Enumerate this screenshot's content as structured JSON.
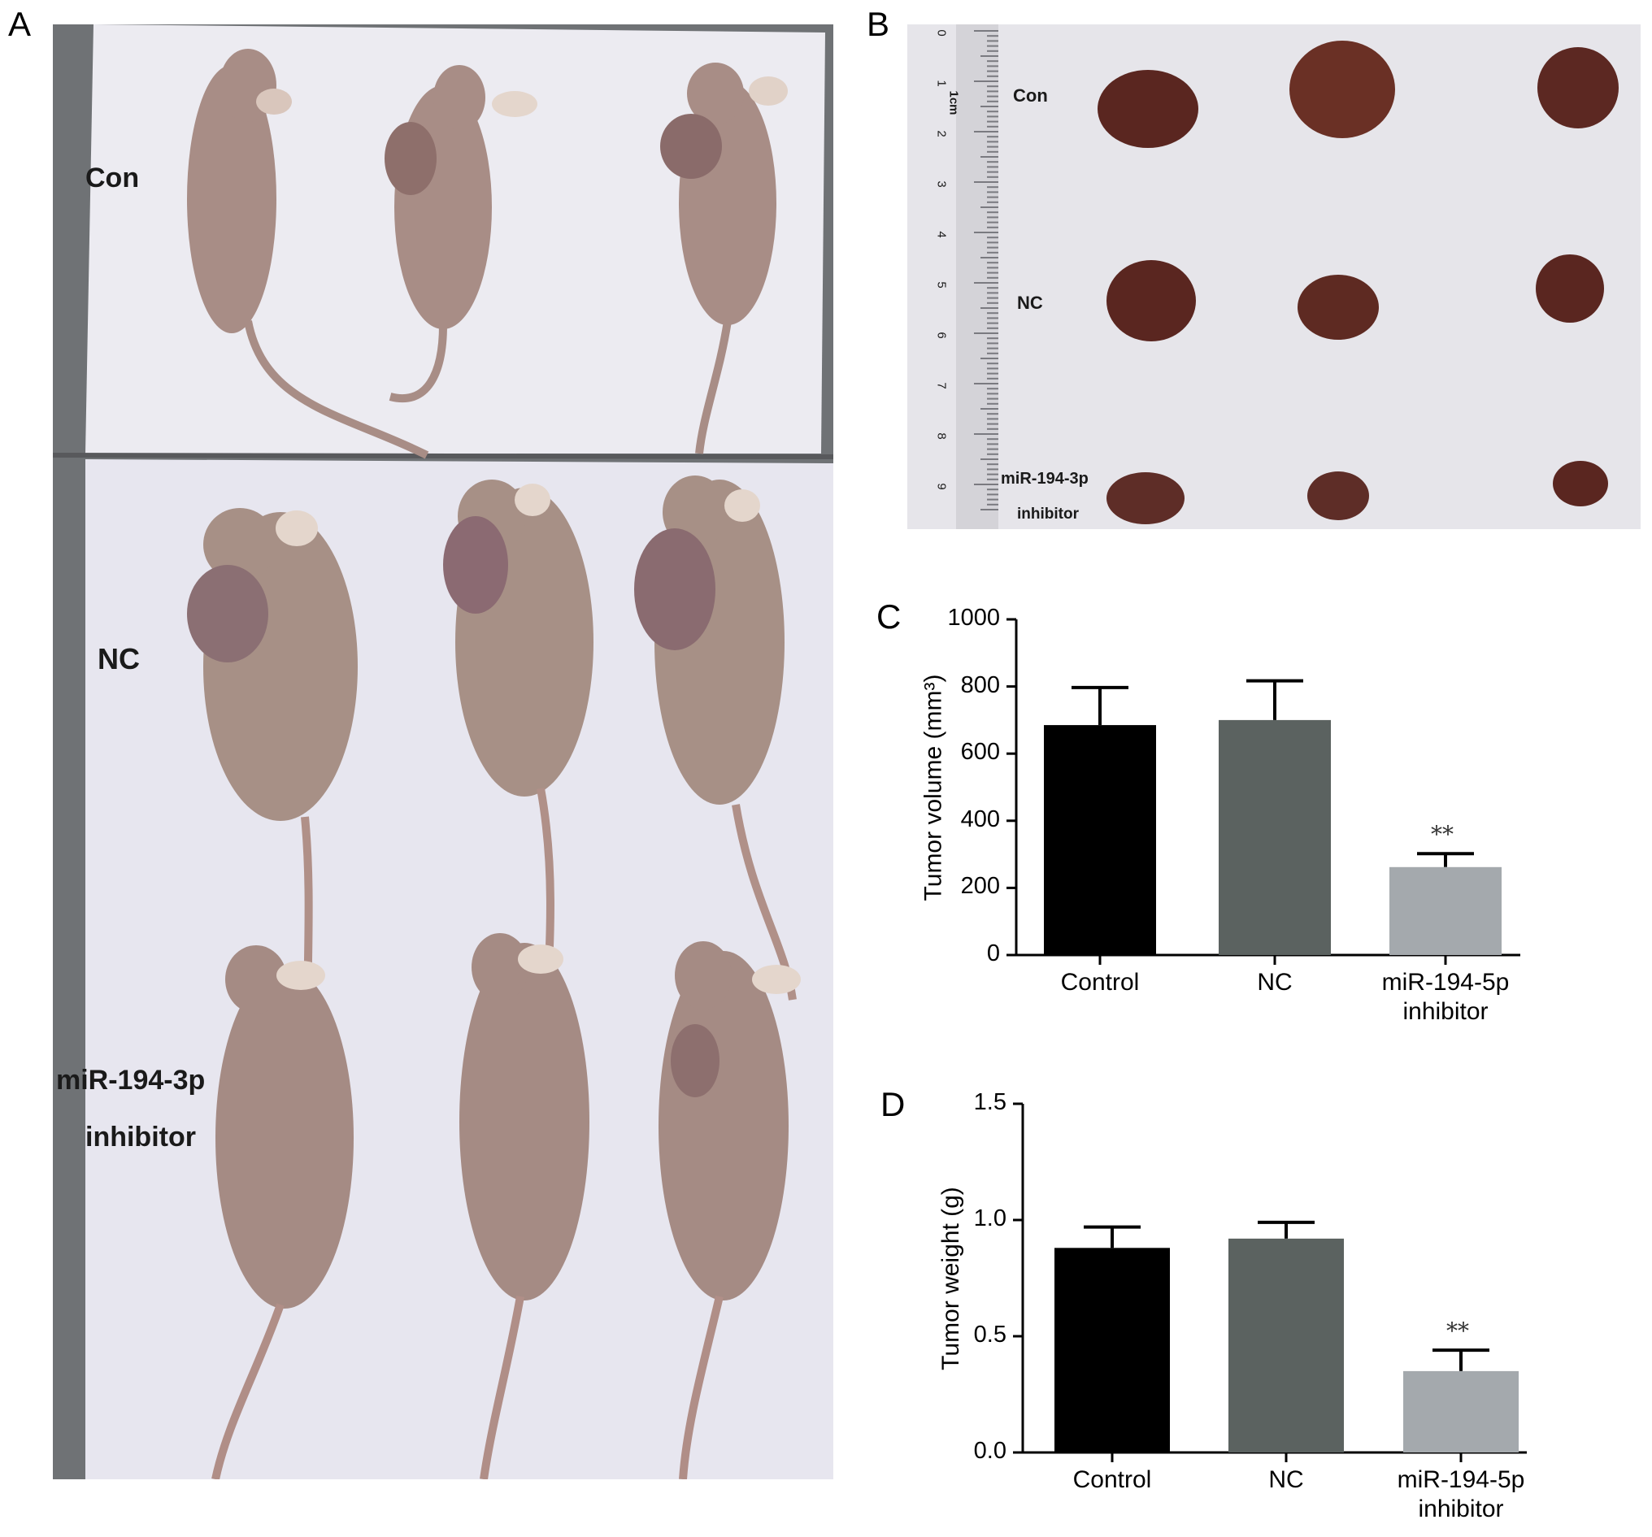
{
  "panels": {
    "a": {
      "letter": "A",
      "groups": [
        "Con",
        "NC",
        "miR-194-3p",
        "inhibitor"
      ]
    },
    "b": {
      "letter": "B",
      "groups": [
        "Con",
        "NC",
        "miR-194-3p",
        "inhibitor"
      ],
      "ruler_label": "1cm",
      "ruler_numbers": [
        "0",
        "1",
        "2",
        "3",
        "4",
        "5",
        "6",
        "7",
        "8",
        "9"
      ]
    },
    "c": {
      "letter": "C"
    },
    "d": {
      "letter": "D"
    }
  },
  "colors": {
    "control": "#000000",
    "nc": "#5b6260",
    "inhibitor": "#a4a9ad",
    "mouse_skin": "#a88d86",
    "tumor": "#5a2620",
    "paper": "#ebe9f0"
  },
  "chart_data": [
    {
      "type": "bar",
      "panel": "C",
      "categories": [
        "Control",
        "NC",
        "miR-194-5p inhibitor"
      ],
      "category_lines": [
        [
          "Control"
        ],
        [
          "NC"
        ],
        [
          "miR-194-5p",
          "inhibitor"
        ]
      ],
      "values": [
        685,
        700,
        262
      ],
      "error": [
        112,
        117,
        40
      ],
      "colors": [
        "#000000",
        "#5b6260",
        "#a4a9ad"
      ],
      "ylabel": "Tumor volume (mm³)",
      "ylim": [
        0,
        1000
      ],
      "yticks": [
        "0",
        "200",
        "400",
        "600",
        "800",
        "1000"
      ],
      "ytick_values": [
        0,
        200,
        400,
        600,
        800,
        1000
      ],
      "annotations": [
        "",
        "",
        "**"
      ],
      "grid": false
    },
    {
      "type": "bar",
      "panel": "D",
      "categories": [
        "Control",
        "NC",
        "miR-194-5p inhibitor"
      ],
      "category_lines": [
        [
          "Control"
        ],
        [
          "NC"
        ],
        [
          "miR-194-5p",
          "inhibitor"
        ]
      ],
      "values": [
        0.88,
        0.92,
        0.35
      ],
      "error": [
        0.09,
        0.07,
        0.09
      ],
      "colors": [
        "#000000",
        "#5b6260",
        "#a4a9ad"
      ],
      "ylabel": "Tumor weight (g)",
      "ylim": [
        0,
        1.5
      ],
      "yticks": [
        "0.0",
        "0.5",
        "1.0",
        "1.5"
      ],
      "ytick_values": [
        0,
        0.5,
        1.0,
        1.5
      ],
      "annotations": [
        "",
        "",
        "**"
      ],
      "grid": false
    }
  ]
}
